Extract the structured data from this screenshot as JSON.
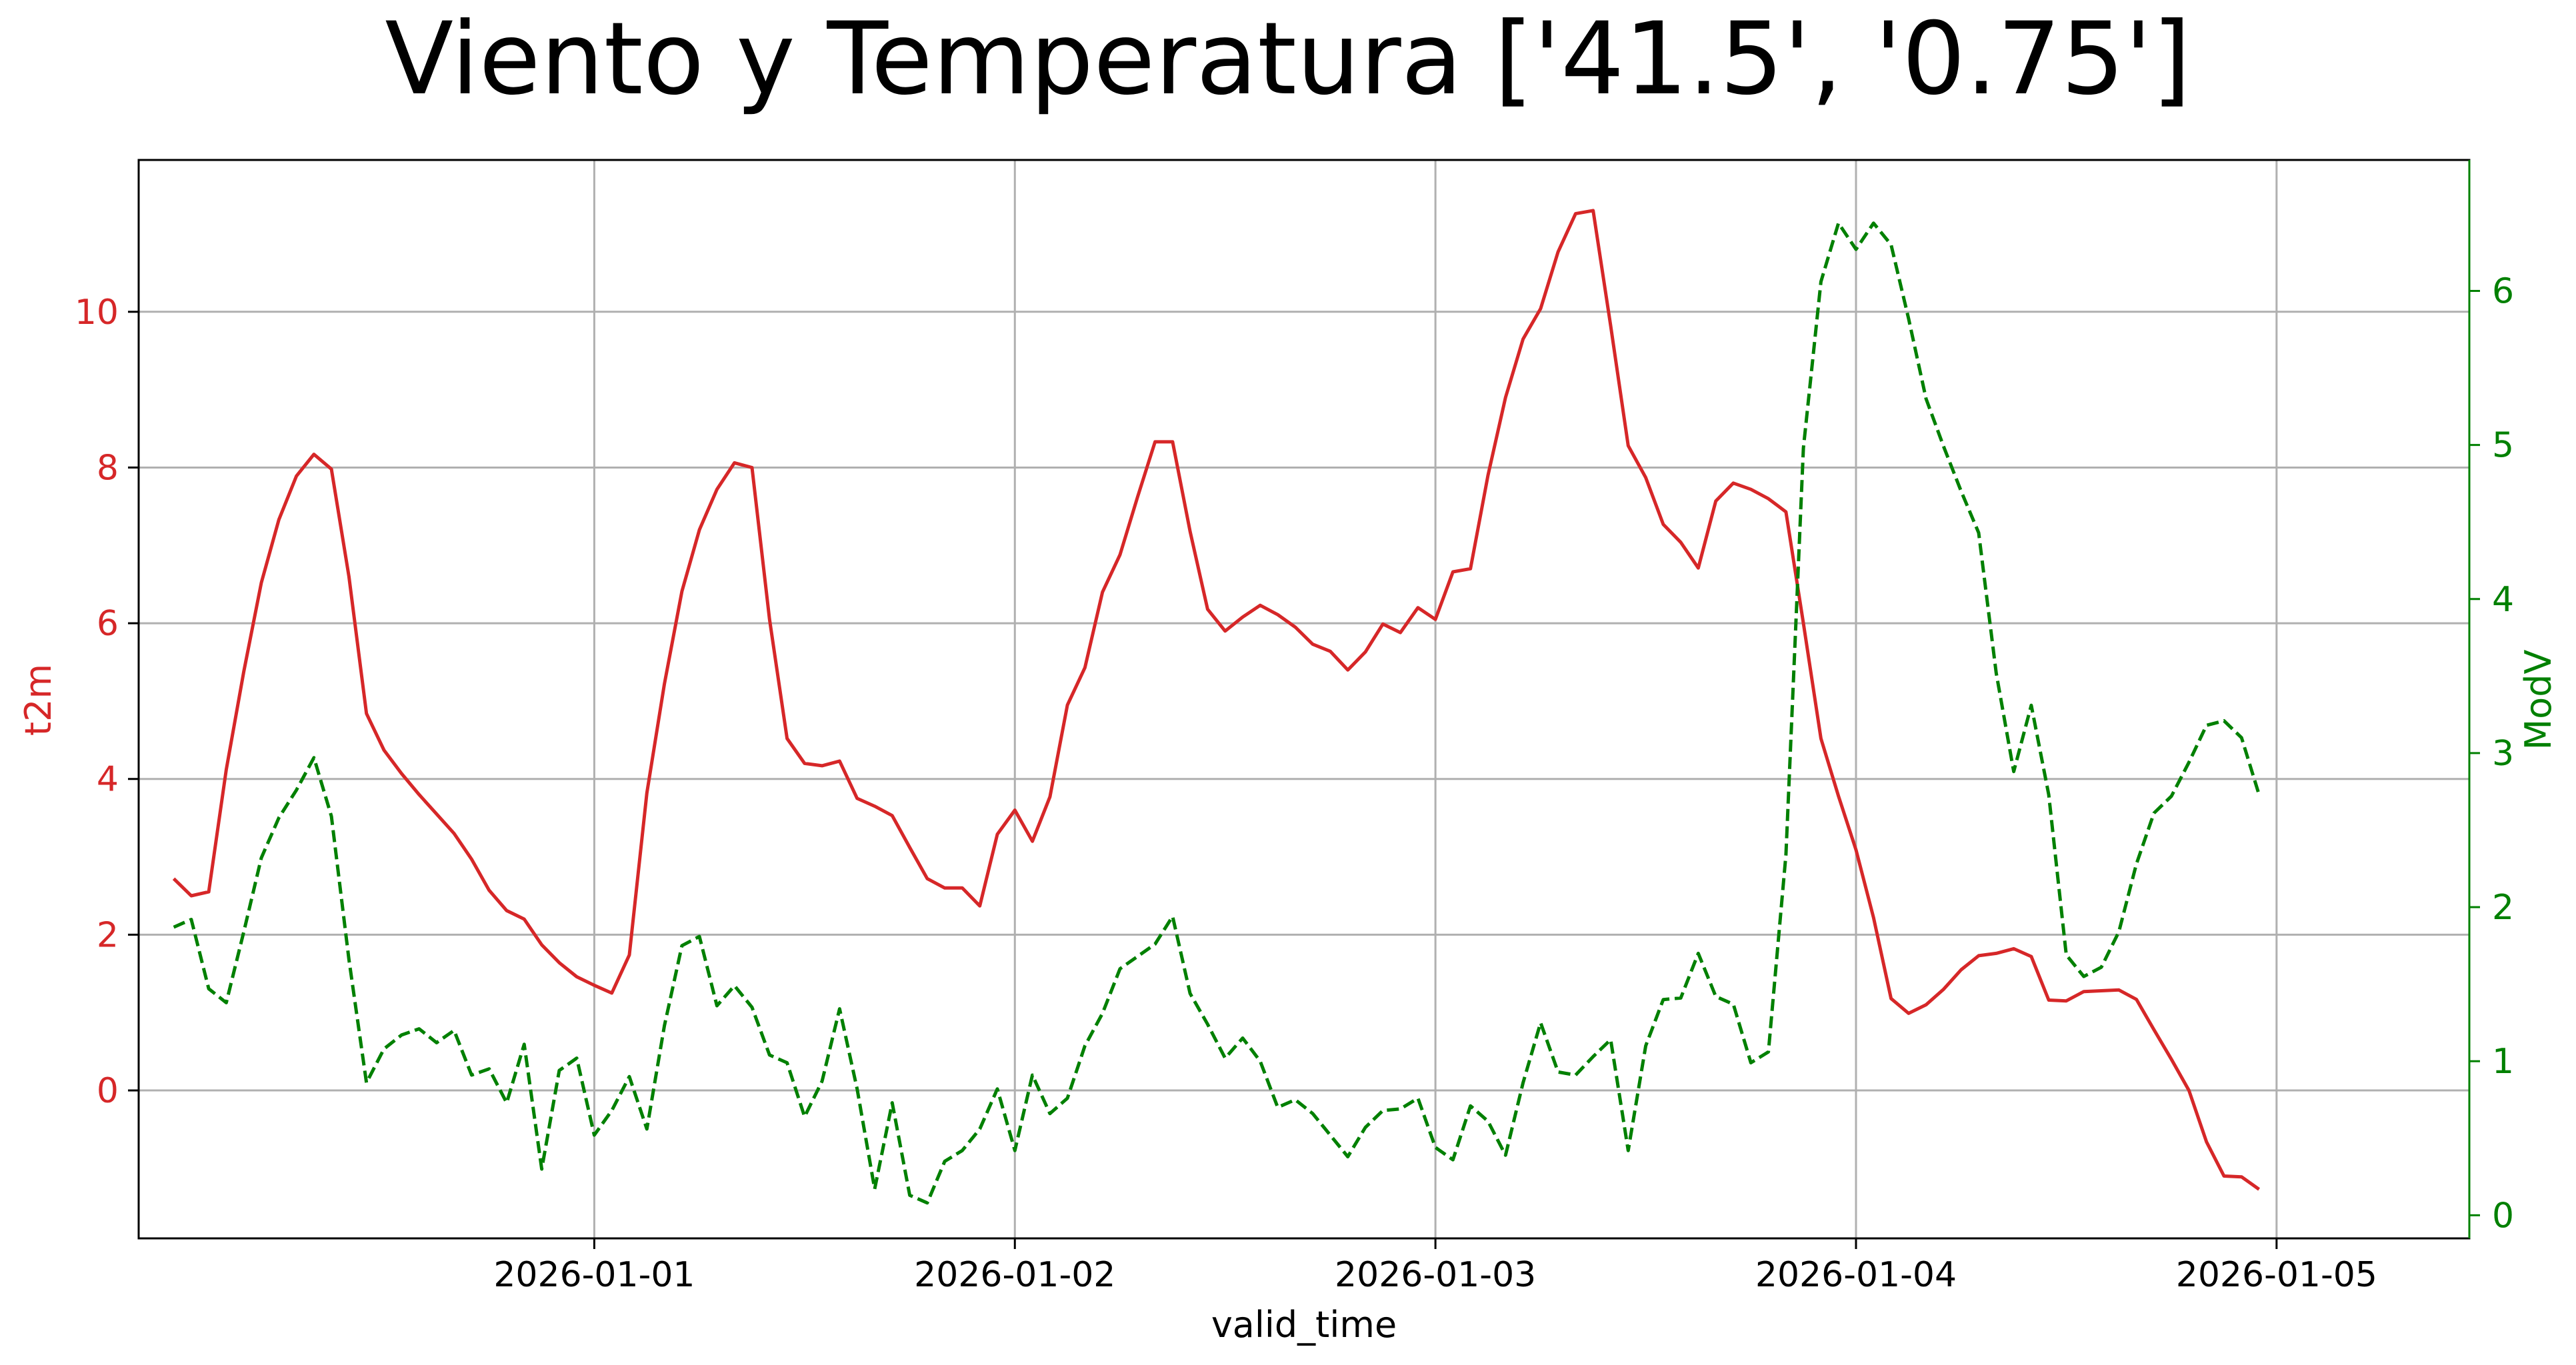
{
  "chart_data": {
    "type": "line",
    "title": "Viento y Temperatura ['41.5', '0.75']",
    "xlabel": "valid_time",
    "ylabel_left": "t2m",
    "ylabel_right": "ModV",
    "grid": true,
    "x_start": "2025-12-31T00:00",
    "x_step_hours": 1,
    "x_ticks": [
      "2026-01-01",
      "2026-01-02",
      "2026-01-03",
      "2026-01-04",
      "2026-01-05"
    ],
    "xlim": [
      "2025-12-30T22:00",
      "2026-01-05T11:00"
    ],
    "ylim_left": [
      -1.9,
      11.95
    ],
    "ylim_right": [
      -0.15,
      6.85
    ],
    "yticks_left": [
      0,
      2,
      4,
      6,
      8,
      10
    ],
    "yticks_right": [
      0,
      1,
      2,
      3,
      4,
      5,
      6
    ],
    "series": [
      {
        "name": "t2m",
        "axis": "left",
        "color": "#d62728",
        "style": "solid",
        "values": [
          2.72,
          2.5,
          2.55,
          4.12,
          5.38,
          6.52,
          7.33,
          7.89,
          8.17,
          7.98,
          6.6,
          4.84,
          4.37,
          4.07,
          3.8,
          3.55,
          3.3,
          2.97,
          2.57,
          2.31,
          2.2,
          1.87,
          1.64,
          1.46,
          1.35,
          1.25,
          1.74,
          3.82,
          5.22,
          6.41,
          7.2,
          7.72,
          8.06,
          8.0,
          6.05,
          4.52,
          4.2,
          4.17,
          4.23,
          3.75,
          3.65,
          3.53,
          3.12,
          2.72,
          2.6,
          2.6,
          2.37,
          3.29,
          3.6,
          3.2,
          3.77,
          4.95,
          5.43,
          6.4,
          6.88,
          7.62,
          8.33,
          8.33,
          7.18,
          6.18,
          5.9,
          6.08,
          6.23,
          6.11,
          5.95,
          5.73,
          5.64,
          5.4,
          5.63,
          5.99,
          5.88,
          6.2,
          6.05,
          6.66,
          6.7,
          7.9,
          8.9,
          9.65,
          10.04,
          10.77,
          11.26,
          11.3,
          9.82,
          8.28,
          7.87,
          7.27,
          7.04,
          6.71,
          7.57,
          7.8,
          7.72,
          7.6,
          7.43,
          6.0,
          4.52,
          3.78,
          3.09,
          2.22,
          1.18,
          0.99,
          1.1,
          1.3,
          1.55,
          1.73,
          1.76,
          1.82,
          1.72,
          1.16,
          1.15,
          1.27,
          1.28,
          1.29,
          1.17,
          0.78,
          0.4,
          0.0,
          -0.66,
          -1.1,
          -1.11,
          -1.27
        ]
      },
      {
        "name": "ModV",
        "axis": "right",
        "color": "#008000",
        "style": "dashed",
        "values": [
          1.87,
          1.92,
          1.47,
          1.38,
          1.84,
          2.32,
          2.58,
          2.76,
          2.97,
          2.59,
          1.66,
          0.86,
          1.08,
          1.17,
          1.21,
          1.12,
          1.2,
          0.91,
          0.95,
          0.73,
          1.11,
          0.3,
          0.94,
          1.02,
          0.52,
          0.68,
          0.9,
          0.56,
          1.23,
          1.75,
          1.81,
          1.36,
          1.49,
          1.35,
          1.04,
          0.99,
          0.64,
          0.87,
          1.34,
          0.82,
          0.17,
          0.73,
          0.13,
          0.08,
          0.35,
          0.42,
          0.56,
          0.82,
          0.42,
          0.91,
          0.66,
          0.76,
          1.1,
          1.31,
          1.6,
          1.68,
          1.76,
          1.94,
          1.44,
          1.24,
          1.02,
          1.15,
          1.0,
          0.7,
          0.75,
          0.66,
          0.52,
          0.38,
          0.57,
          0.68,
          0.69,
          0.76,
          0.44,
          0.36,
          0.71,
          0.61,
          0.39,
          0.86,
          1.25,
          0.93,
          0.91,
          1.03,
          1.14,
          0.42,
          1.1,
          1.4,
          1.41,
          1.7,
          1.42,
          1.37,
          0.99,
          1.06,
          2.34,
          4.98,
          6.06,
          6.44,
          6.27,
          6.44,
          6.3,
          5.82,
          5.3,
          4.99,
          4.7,
          4.43,
          3.52,
          2.88,
          3.31,
          2.73,
          1.69,
          1.55,
          1.61,
          1.84,
          2.28,
          2.61,
          2.72,
          2.94,
          3.18,
          3.21,
          3.1,
          2.73
        ]
      }
    ]
  }
}
